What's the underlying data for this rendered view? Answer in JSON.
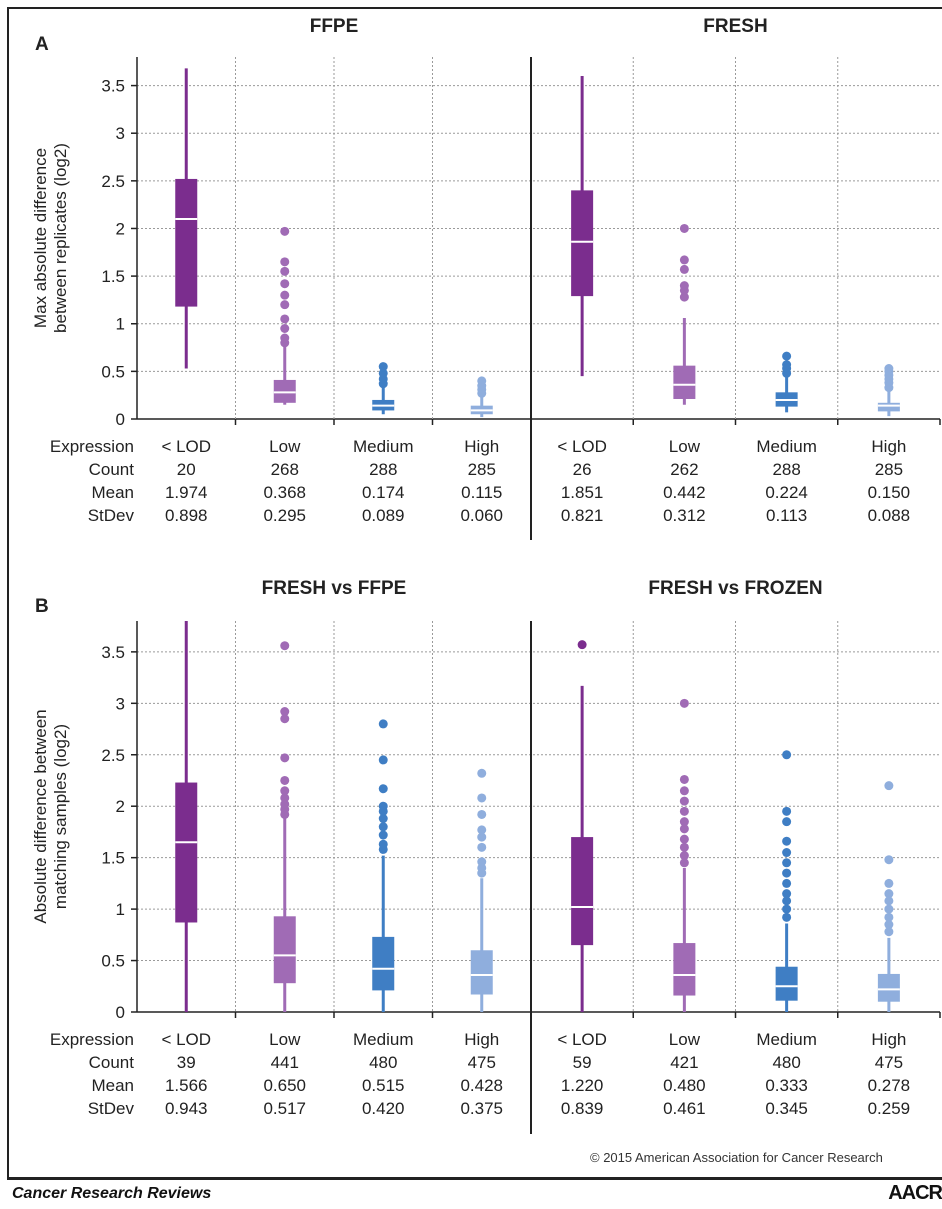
{
  "chart_data": [
    {
      "panel_label": "A",
      "type": "box",
      "ylabel_line1": "Max absolute difference",
      "ylabel_line2": "between replicates (log2)",
      "ylim": [
        0,
        3.8
      ],
      "yticks": [
        0,
        0.5,
        1,
        1.5,
        2,
        2.5,
        3,
        3.5
      ],
      "ytick_labels": [
        "0",
        "0.5",
        "1",
        "1.5",
        "2",
        "2.5",
        "3",
        "3.5"
      ],
      "grid": true,
      "stat_row_labels": [
        "Expression",
        "Count",
        "Mean",
        "StDev"
      ],
      "subplots": [
        {
          "title": "FFPE",
          "categories": [
            "< LOD",
            "Low",
            "Medium",
            "High"
          ],
          "count": [
            "20",
            "268",
            "288",
            "285"
          ],
          "mean": [
            "1.974",
            "0.368",
            "0.174",
            "0.115"
          ],
          "stdev": [
            "0.898",
            "0.295",
            "0.089",
            "0.060"
          ],
          "boxes": [
            {
              "whisker_low": 0.53,
              "q1": 1.18,
              "median": 2.1,
              "q3": 2.52,
              "whisker_high": 3.68,
              "outliers": []
            },
            {
              "whisker_low": 0.15,
              "q1": 0.17,
              "median": 0.28,
              "q3": 0.41,
              "whisker_high": 0.76,
              "outliers": [
                0.8,
                0.85,
                0.95,
                1.05,
                1.2,
                1.3,
                1.42,
                1.55,
                1.65,
                1.97
              ]
            },
            {
              "whisker_low": 0.05,
              "q1": 0.09,
              "median": 0.14,
              "q3": 0.2,
              "whisker_high": 0.33,
              "outliers": [
                0.37,
                0.42,
                0.48,
                0.55
              ]
            },
            {
              "whisker_low": 0.02,
              "q1": 0.05,
              "median": 0.09,
              "q3": 0.14,
              "whisker_high": 0.25,
              "outliers": [
                0.27,
                0.31,
                0.35,
                0.4
              ]
            }
          ]
        },
        {
          "title": "FRESH",
          "categories": [
            "< LOD",
            "Low",
            "Medium",
            "High"
          ],
          "count": [
            "26",
            "262",
            "288",
            "285"
          ],
          "mean": [
            "1.851",
            "0.442",
            "0.224",
            "0.150"
          ],
          "stdev": [
            "0.821",
            "0.312",
            "0.113",
            "0.088"
          ],
          "boxes": [
            {
              "whisker_low": 0.45,
              "q1": 1.29,
              "median": 1.86,
              "q3": 2.4,
              "whisker_high": 3.6,
              "outliers": []
            },
            {
              "whisker_low": 0.15,
              "q1": 0.21,
              "median": 0.36,
              "q3": 0.56,
              "whisker_high": 1.06,
              "outliers": [
                1.28,
                1.35,
                1.4,
                1.57,
                1.67,
                2.0
              ]
            },
            {
              "whisker_low": 0.07,
              "q1": 0.13,
              "median": 0.2,
              "q3": 0.28,
              "whisker_high": 0.45,
              "outliers": [
                0.48,
                0.53,
                0.57,
                0.66
              ]
            },
            {
              "whisker_low": 0.03,
              "q1": 0.08,
              "median": 0.14,
              "q3": 0.17,
              "whisker_high": 0.3,
              "outliers": [
                0.33,
                0.38,
                0.42,
                0.46,
                0.5,
                0.53
              ]
            }
          ]
        }
      ]
    },
    {
      "panel_label": "B",
      "type": "box",
      "ylabel_line1": "Absolute difference between",
      "ylabel_line2": "matching samples (log2)",
      "ylim": [
        0,
        3.8
      ],
      "yticks": [
        0,
        0.5,
        1,
        1.5,
        2,
        2.5,
        3,
        3.5
      ],
      "ytick_labels": [
        "0",
        "0.5",
        "1",
        "1.5",
        "2",
        "2.5",
        "3",
        "3.5"
      ],
      "grid": true,
      "stat_row_labels": [
        "Expression",
        "Count",
        "Mean",
        "StDev"
      ],
      "subplots": [
        {
          "title": "FRESH vs FFPE",
          "categories": [
            "< LOD",
            "Low",
            "Medium",
            "High"
          ],
          "count": [
            "39",
            "441",
            "480",
            "475"
          ],
          "mean": [
            "1.566",
            "0.650",
            "0.515",
            "0.428"
          ],
          "stdev": [
            "0.943",
            "0.517",
            "0.420",
            "0.375"
          ],
          "boxes": [
            {
              "whisker_low": 0.0,
              "q1": 0.87,
              "median": 1.65,
              "q3": 2.23,
              "whisker_high": 3.8,
              "outliers": []
            },
            {
              "whisker_low": 0.0,
              "q1": 0.28,
              "median": 0.55,
              "q3": 0.93,
              "whisker_high": 1.88,
              "outliers": [
                1.92,
                1.97,
                2.02,
                2.08,
                2.15,
                2.25,
                2.47,
                2.85,
                2.92,
                3.56
              ]
            },
            {
              "whisker_low": 0.0,
              "q1": 0.21,
              "median": 0.42,
              "q3": 0.73,
              "whisker_high": 1.52,
              "outliers": [
                1.58,
                1.63,
                1.72,
                1.8,
                1.88,
                1.95,
                2.0,
                2.17,
                2.45,
                2.8
              ]
            },
            {
              "whisker_low": 0.0,
              "q1": 0.17,
              "median": 0.36,
              "q3": 0.6,
              "whisker_high": 1.3,
              "outliers": [
                1.35,
                1.4,
                1.46,
                1.6,
                1.7,
                1.77,
                1.92,
                2.08,
                2.32
              ]
            }
          ]
        },
        {
          "title": "FRESH vs FROZEN",
          "categories": [
            "< LOD",
            "Low",
            "Medium",
            "High"
          ],
          "count": [
            "59",
            "421",
            "480",
            "475"
          ],
          "mean": [
            "1.220",
            "0.480",
            "0.333",
            "0.278"
          ],
          "stdev": [
            "0.839",
            "0.461",
            "0.345",
            "0.259"
          ],
          "boxes": [
            {
              "whisker_low": 0.0,
              "q1": 0.65,
              "median": 1.02,
              "q3": 1.7,
              "whisker_high": 3.17,
              "outliers": [
                3.57
              ]
            },
            {
              "whisker_low": 0.0,
              "q1": 0.16,
              "median": 0.36,
              "q3": 0.67,
              "whisker_high": 1.4,
              "outliers": [
                1.45,
                1.52,
                1.6,
                1.68,
                1.78,
                1.85,
                1.95,
                2.05,
                2.15,
                2.26,
                3.0
              ]
            },
            {
              "whisker_low": 0.0,
              "q1": 0.11,
              "median": 0.25,
              "q3": 0.44,
              "whisker_high": 0.86,
              "outliers": [
                0.92,
                1.0,
                1.08,
                1.15,
                1.25,
                1.35,
                1.45,
                1.55,
                1.66,
                1.85,
                1.95,
                2.5
              ]
            },
            {
              "whisker_low": 0.0,
              "q1": 0.1,
              "median": 0.22,
              "q3": 0.37,
              "whisker_high": 0.72,
              "outliers": [
                0.78,
                0.85,
                0.92,
                1.0,
                1.08,
                1.15,
                1.25,
                1.48,
                2.2
              ]
            }
          ]
        }
      ]
    }
  ],
  "colors": {
    "lod": "#7B2D8E",
    "low": "#A06BB5",
    "medium": "#3F7EC4",
    "high": "#8FAEDD",
    "grid": "#9a9a9a",
    "axis": "#222222",
    "median_line": "#ffffff"
  },
  "footer": {
    "copyright": "© 2015 American Association for Cancer Research",
    "journal": "Cancer Research Reviews",
    "publisher_logo": "AACR"
  }
}
